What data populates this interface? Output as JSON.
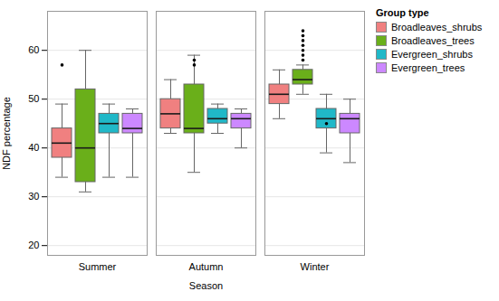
{
  "chart_data": {
    "type": "boxplot",
    "xlabel": "Season",
    "ylabel": "NDF percentage",
    "categories": [
      "Summer",
      "Autumn",
      "Winter"
    ],
    "legend_title": "Group type",
    "legend": "right",
    "grid": true,
    "ylim": [
      18,
      68
    ],
    "yticks": [
      20,
      30,
      40,
      50,
      60
    ],
    "series": [
      {
        "name": "Broadleaves_shrubs",
        "color": "#F08080",
        "boxes": [
          {
            "whislo": 34,
            "q1": 38,
            "med": 41,
            "q3": 44,
            "whishi": 49,
            "fliers": [
              57
            ]
          },
          {
            "whislo": 43,
            "q1": 44,
            "med": 47,
            "q3": 50,
            "whishi": 54,
            "fliers": []
          },
          {
            "whislo": 46,
            "q1": 49,
            "med": 51,
            "q3": 53,
            "whishi": 56,
            "fliers": []
          }
        ]
      },
      {
        "name": "Broadleaves_trees",
        "color": "#6AAF1A",
        "boxes": [
          {
            "whislo": 31,
            "q1": 33,
            "med": 40,
            "q3": 52,
            "whishi": 60,
            "fliers": []
          },
          {
            "whislo": 35,
            "q1": 43,
            "med": 44,
            "q3": 53,
            "whishi": 59,
            "fliers": [
              57,
              58
            ]
          },
          {
            "whislo": 51,
            "q1": 53,
            "med": 54,
            "q3": 56,
            "whishi": 57,
            "fliers": [
              59,
              60,
              61,
              62,
              63,
              64,
              58
            ]
          }
        ]
      },
      {
        "name": "Evergreen_shrubs",
        "color": "#20B8C8",
        "boxes": [
          {
            "whislo": 34,
            "q1": 43,
            "med": 45,
            "q3": 47,
            "whishi": 49,
            "fliers": []
          },
          {
            "whislo": 43,
            "q1": 45,
            "med": 46,
            "q3": 48,
            "whishi": 49,
            "fliers": []
          },
          {
            "whislo": 39,
            "q1": 44,
            "med": 46,
            "q3": 48,
            "whishi": 51,
            "fliers": [
              45
            ]
          }
        ]
      },
      {
        "name": "Evergreen_trees",
        "color": "#CC88FF",
        "boxes": [
          {
            "whislo": 34,
            "q1": 43,
            "med": 44,
            "q3": 47,
            "whishi": 48,
            "fliers": []
          },
          {
            "whislo": 40,
            "q1": 44,
            "med": 46,
            "q3": 47,
            "whishi": 48,
            "fliers": []
          },
          {
            "whislo": 37,
            "q1": 43,
            "med": 46,
            "q3": 47,
            "whishi": 50,
            "fliers": []
          }
        ]
      }
    ]
  }
}
